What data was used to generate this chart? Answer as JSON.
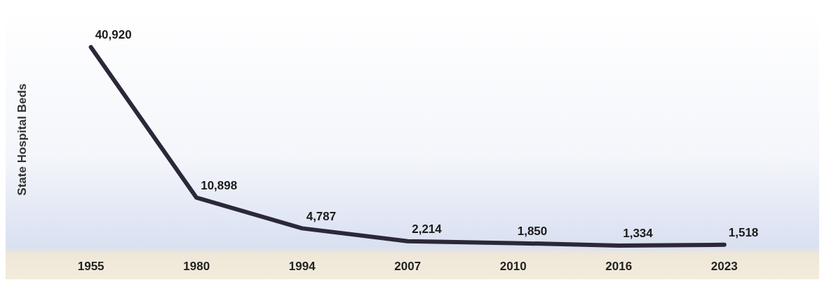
{
  "chart_data": {
    "type": "line",
    "ylabel": "State Hospital Beds",
    "categories": [
      "1955",
      "1980",
      "1994",
      "2007",
      "2010",
      "2016",
      "2023"
    ],
    "values": [
      40920,
      10898,
      4787,
      2214,
      1850,
      1334,
      1518
    ],
    "value_labels": [
      "40,920",
      "10,898",
      "4,787",
      "2,214",
      "1,850",
      "1,334",
      "1,518"
    ],
    "color": "#2b2839",
    "grid": false,
    "legend": false,
    "marker": "none",
    "line_style": "solid",
    "tick_labels": "x"
  }
}
